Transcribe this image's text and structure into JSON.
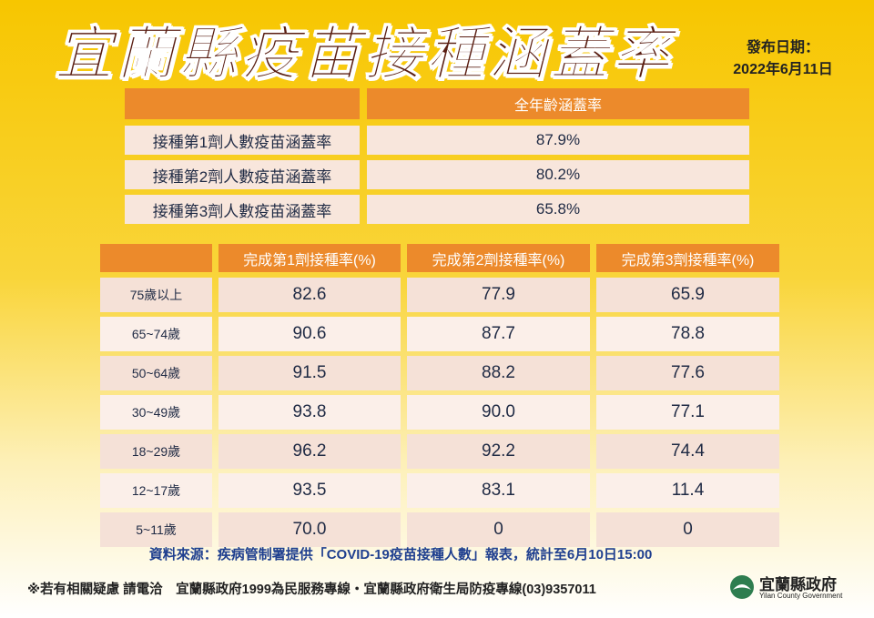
{
  "header": {
    "title": "宜蘭縣疫苗接種涵蓋率",
    "date_label": "發布日期：",
    "date": "2022年6月11日"
  },
  "table1": {
    "header": "全年齡涵蓋率",
    "rows": [
      [
        "接種第1劑人數疫苗涵蓋率",
        "87.9%"
      ],
      [
        "接種第2劑人數疫苗涵蓋率",
        "80.2%"
      ],
      [
        "接種第3劑人數疫苗涵蓋率",
        "65.8%"
      ]
    ]
  },
  "table2": {
    "headers": [
      "完成第1劑接種率(%)",
      "完成第2劑接種率(%)",
      "完成第3劑接種率(%)"
    ],
    "rows": [
      [
        "75歲以上",
        "82.6",
        "77.9",
        "65.9"
      ],
      [
        "65~74歲",
        "90.6",
        "87.7",
        "78.8"
      ],
      [
        "50~64歲",
        "91.5",
        "88.2",
        "77.6"
      ],
      [
        "30~49歲",
        "93.8",
        "90.0",
        "77.1"
      ],
      [
        "18~29歲",
        "96.2",
        "92.2",
        "74.4"
      ],
      [
        "12~17歲",
        "93.5",
        "83.1",
        "11.4"
      ],
      [
        "5~11歲",
        "70.0",
        "0",
        "0"
      ]
    ]
  },
  "source": "資料來源：疾病管制署提供「COVID-19疫苗接種人數」報表，統計至6月10日15:00",
  "footer": "※若有相關疑慮 請電洽　宜蘭縣政府1999為民服務專線・宜蘭縣政府衛生局防疫專線(03)9357011",
  "logo": {
    "name": "宜蘭縣政府",
    "english": "Yilan County Government"
  }
}
